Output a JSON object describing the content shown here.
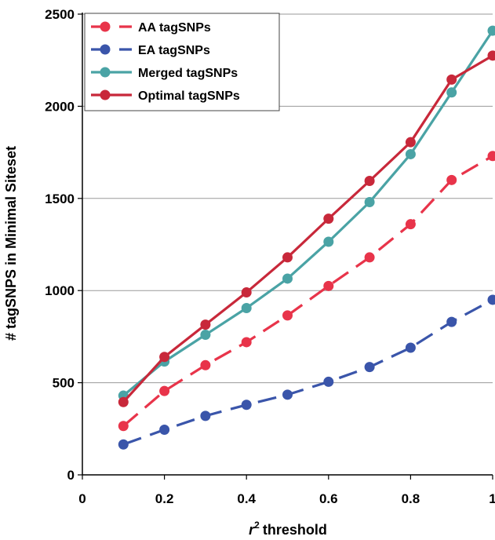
{
  "chart_data": {
    "type": "line",
    "title": "",
    "xlabel": "threshold",
    "xlabel_prefix": "r",
    "xlabel_superscript": "2",
    "ylabel": "# tagSNPS in Minimal Siteset",
    "xlim": [
      0,
      1
    ],
    "ylim": [
      0,
      2500
    ],
    "x_ticks": [
      "0",
      "0.2",
      "0.4",
      "0.6",
      "0.8",
      "1"
    ],
    "y_ticks": [
      "0",
      "500",
      "1000",
      "1500",
      "2000",
      "2500"
    ],
    "grid": "horizontal",
    "legend_position": "top-left",
    "x": [
      0.1,
      0.2,
      0.3,
      0.4,
      0.5,
      0.6,
      0.7,
      0.8,
      0.9,
      1.0
    ],
    "series": [
      {
        "name": "AA tagSNPs",
        "color": "#e8344a",
        "dashed": true,
        "values": [
          265,
          455,
          595,
          720,
          865,
          1025,
          1180,
          1360,
          1600,
          1730
        ]
      },
      {
        "name": "EA tagSNPs",
        "color": "#3a55aa",
        "dashed": true,
        "values": [
          165,
          245,
          320,
          380,
          435,
          505,
          585,
          690,
          830,
          950
        ]
      },
      {
        "name": "Merged tagSNPs",
        "color": "#4aa3a5",
        "dashed": false,
        "values": [
          430,
          615,
          760,
          905,
          1065,
          1265,
          1480,
          1740,
          2075,
          2410
        ]
      },
      {
        "name": "Optimal tagSNPs",
        "color": "#c8283a",
        "dashed": false,
        "values": [
          395,
          640,
          815,
          990,
          1180,
          1390,
          1595,
          1805,
          2145,
          2275
        ]
      }
    ]
  }
}
